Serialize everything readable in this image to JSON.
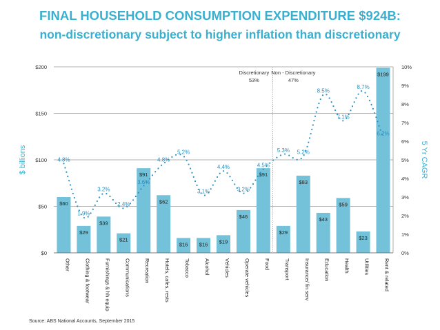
{
  "chart_data": {
    "type": "bar",
    "title": "FINAL HOUSEHOLD CONSUMPTION EXPENDITURE $924B:",
    "subtitle": "non-discretionary subject to higher inflation than discretionary",
    "ylabel": "$ billions",
    "y2label": "5 Yr CAGR",
    "ylim": [
      0,
      200
    ],
    "y2lim": [
      0,
      10
    ],
    "yticks": [
      "$0",
      "$50",
      "$100",
      "$150",
      "$200"
    ],
    "y2ticks": [
      "0%",
      "1%",
      "2%",
      "3%",
      "4%",
      "5%",
      "6%",
      "7%",
      "8%",
      "9%",
      "10%"
    ],
    "grid": true,
    "categories": [
      "Other",
      "Clothing & footwear",
      "Furnishings & hh equip",
      "Communications",
      "Recreation",
      "Hotels, cafes, rests",
      "Tobacco",
      "Alcohol",
      "Vehicles",
      "Operate vehicles",
      "Food",
      "Transport",
      "Insurance/ fin serv",
      "Education",
      "Health",
      "Utilities",
      "Rent & related"
    ],
    "series": [
      {
        "type": "bar",
        "values": [
          60,
          29,
          39,
          21,
          91,
          62,
          16,
          16,
          19,
          46,
          91,
          29,
          83,
          43,
          59,
          23,
          199
        ],
        "labels": [
          "$60",
          "$29",
          "$39",
          "$21",
          "$91",
          "$62",
          "$16",
          "$16",
          "$19",
          "$46",
          "$91",
          "$29",
          "$83",
          "$43",
          "$59",
          "$23",
          "$199"
        ]
      },
      {
        "type": "line",
        "axis": "right",
        "values": [
          4.8,
          1.9,
          3.2,
          2.4,
          3.6,
          4.8,
          5.2,
          3.1,
          4.4,
          3.2,
          4.5,
          5.3,
          5.2,
          8.5,
          7.1,
          8.7,
          6.2
        ],
        "labels": [
          "4.8%",
          "1.9%",
          "3.2%",
          "2.4%",
          "3.6%",
          "4.8%",
          "5.2%",
          "3.1%",
          "4.4%",
          "3.2%",
          "4.5%",
          "5.3%",
          "5.2%",
          "8.5%",
          "7.1%",
          "8.7%",
          "6.2%"
        ]
      }
    ],
    "annotations": [
      {
        "label": "Discretionary",
        "value": "53%"
      },
      {
        "label": "Non - Discretionary",
        "value": "47%"
      }
    ],
    "colors": {
      "bar": "#74c2d9",
      "line": "#2a8fc0",
      "title": "#3ab0d0"
    }
  },
  "source": "Source: ABS National Accounts, September 2015"
}
